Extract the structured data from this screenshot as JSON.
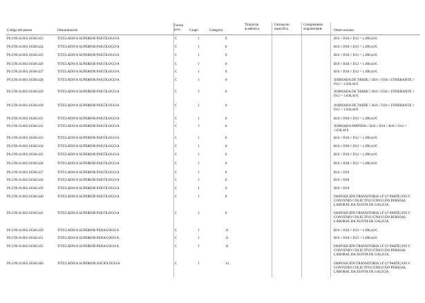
{
  "header": {
    "code": "Código del puesto",
    "name": "Denominación",
    "forma": "Forma prov.",
    "grupo": "Grupo",
    "categoria": "Categoría",
    "titulacion": "Titulación académica",
    "formacion": "Formación específica",
    "complemento": "Complemento singularidade",
    "obs": "Observaciones"
  },
  "table": {
    "rows": [
      {
        "code": "PS.C99.10.003.16560.423",
        "name": "TITULADO/A SUPERIOR PSICÓLOGO/A",
        "forma": "C",
        "grupo": "I",
        "categoria": "8",
        "obs": "B16 // D18 // D12 = 1.498,44 €."
      },
      {
        "code": "PS.C99.10.003.16560.424",
        "name": "TITULADO/A SUPERIOR PSICÓLOGO/A",
        "forma": "C",
        "grupo": "I",
        "categoria": "8",
        "obs": "B16 // D18 // D12 = 1.498,44 €."
      },
      {
        "code": "PS.C99.10.003.16560.425",
        "name": "TITULADO/A SUPERIOR PSICÓLOGO/A",
        "forma": "C",
        "grupo": "I",
        "categoria": "8",
        "obs": "B16 // D18 // D12 = 1.498,44 €."
      },
      {
        "code": "PS.C99.10.003.16560.426",
        "name": "TITULADO/A SUPERIOR PSICÓLOGO/A",
        "forma": "C",
        "grupo": "I",
        "categoria": "8",
        "obs": "B16 // D18 // D12 = 1.498,44 €."
      },
      {
        "code": "PS.C99.10.003.16560.427",
        "name": "TITULADO/A SUPERIOR PSICÓLOGO/A",
        "forma": "C",
        "grupo": "I",
        "categoria": "8",
        "obs": "B16 // D18 // D12 = 1.498,44 €."
      },
      {
        "code": "PS.C99.10.003.16560.428",
        "name": "TITULADO/A SUPERIOR PSICÓLOGO/A",
        "forma": "C",
        "grupo": "I",
        "categoria": "8",
        "obs": "XORNADA DE TARDE // B16 // D18 // ITINERANTE // D12 = 1.636,44 €."
      },
      {
        "code": "PS.C99.10.003.16560.429",
        "name": "TITULADO/A SUPERIOR PSICÓLOGO/A",
        "forma": "C",
        "grupo": "I",
        "categoria": "8",
        "obs": "XORNADA DE TARDE // B16 // D18 // ITINERANTE // D12 = 1.636,44 €."
      },
      {
        "code": "PS.C99.10.003.16560.430",
        "name": "TITULADO/A SUPERIOR PSICÓLOGO/A",
        "forma": "C",
        "grupo": "I",
        "categoria": "8",
        "obs": "XORNADA DE TARDE // B16 // D18 // ITINERANTE // D12 = 1.636,44 €."
      },
      {
        "code": "PS.C99.10.003.16560.431",
        "name": "TITULADO/A SUPERIOR PSICÓLOGO/A",
        "forma": "C",
        "grupo": "I",
        "categoria": "8",
        "obs": "B16 // D18 // D12 = 1.498,44 €."
      },
      {
        "code": "PS.C99.10.003.16560.432",
        "name": "TITULADO/A SUPERIOR PSICÓLOGO/A",
        "forma": "C",
        "grupo": "I",
        "categoria": "8",
        "obs": "XORNADA PARTIDA // B16 // D18 // B16 // D12 = 1.636,44 €."
      },
      {
        "code": "PS.C99.10.003.16560.433",
        "name": "TITULADO/A SUPERIOR PSICÓLOGO/A",
        "forma": "C",
        "grupo": "I",
        "categoria": "8",
        "obs": "B16 // D18 // D12 = 1.498,44 €."
      },
      {
        "code": "PS.C99.10.003.16560.434",
        "name": "TITULADO/A SUPERIOR PSICÓLOGO/A",
        "forma": "C",
        "grupo": "I",
        "categoria": "8",
        "obs": "B16 // D18 // D12 = 1.498,44 €."
      },
      {
        "code": "PS.C99.10.003.16560.435",
        "name": "TITULADO/A SUPERIOR PSICÓLOGO/A",
        "forma": "C",
        "grupo": "I",
        "categoria": "8",
        "obs": "B16 // D18 // D12 = 1.498,44 €."
      },
      {
        "code": "PS.C99.10.003.16560.436",
        "name": "TITULADO/A SUPERIOR PSICÓLOGO/A",
        "forma": "C",
        "grupo": "I",
        "categoria": "8",
        "obs": "B16 // D18 // D12 = 1.498,44 €."
      },
      {
        "code": "PS.C99.10.003.16560.437",
        "name": "TITULADO/A SUPERIOR PSICÓLOGO/A",
        "forma": "C",
        "grupo": "I",
        "categoria": "8",
        "obs": "B16 // D18"
      },
      {
        "code": "PS.C99.10.003.16560.438",
        "name": "TITULADO/A SUPERIOR PSICÓLOGO/A",
        "forma": "C",
        "grupo": "I",
        "categoria": "8",
        "obs": "B16 // D18"
      },
      {
        "code": "PS.C99.10.003.16560.439",
        "name": "TITULADO/A SUPERIOR PSICÓLOGO/A",
        "forma": "C",
        "grupo": "I",
        "categoria": "8",
        "obs": "B16 // D18"
      },
      {
        "code": "PS.C99.10.003.16560.440",
        "name": "TITULADO/A SUPERIOR PSICÓLOGO/A",
        "forma": "C",
        "grupo": "I",
        "categoria": "8",
        "obs": "DISPOSICIÓN TRANSITORIA 14ª (2ª PARTE) DO V CONVENIO COLECTIVO ÚNICO DO PERSOAL LABORAL DA XUNTA DE GALICIA."
      },
      {
        "code": "PS.C99.10.003.16560.441",
        "name": "TITULADO/A SUPERIOR PSICÓLOGO/A",
        "forma": "C",
        "grupo": "I",
        "categoria": "8",
        "obs": "DISPOSICIÓN TRANSITORIA 14ª (2ª PARTE) DO V CONVENIO COLECTIVO ÚNICO DO PERSOAL LABORAL DA XUNTA DE GALICIA."
      },
      {
        "code": "PS.C99.10.003.16560.450",
        "name": "TITULADO/A SUPERIOR PEDAGOGO/A",
        "forma": "C",
        "grupo": "I",
        "categoria": "11",
        "obs": "B16 // D18 // D12 = 1.498,44 €."
      },
      {
        "code": "PS.C99.10.003.16560.451",
        "name": "TITULADO/A SUPERIOR PEDAGOGO/A",
        "forma": "C",
        "grupo": "I",
        "categoria": "11",
        "obs": "B16 // D18 // D12 = 1.498,44 €."
      },
      {
        "code": "PS.C99.10.003.16560.452",
        "name": "TITULADO/A SUPERIOR PEDAGOGO/A",
        "forma": "C",
        "grupo": "I",
        "categoria": "11",
        "obs": "DISPOSICIÓN TRANSITORIA 14ª (2ª PARTE) DO V CONVENIO COLECTIVO ÚNICO DO PERSOAL LABORAL DA XUNTA DE GALICIA."
      },
      {
        "code": "PS.C99.10.003.16560.460",
        "name": "TITULADO/A SUPERIOR SOCIÓLOGO/A",
        "forma": "C",
        "grupo": "I",
        "categoria": "14",
        "obs": "DISPOSICIÓN TRANSITORIA 14ª (2ª PARTE) DO V CONVENIO COLECTIVO ÚNICO DO PERSOAL LABORAL DA XUNTA DE GALICIA."
      }
    ]
  }
}
